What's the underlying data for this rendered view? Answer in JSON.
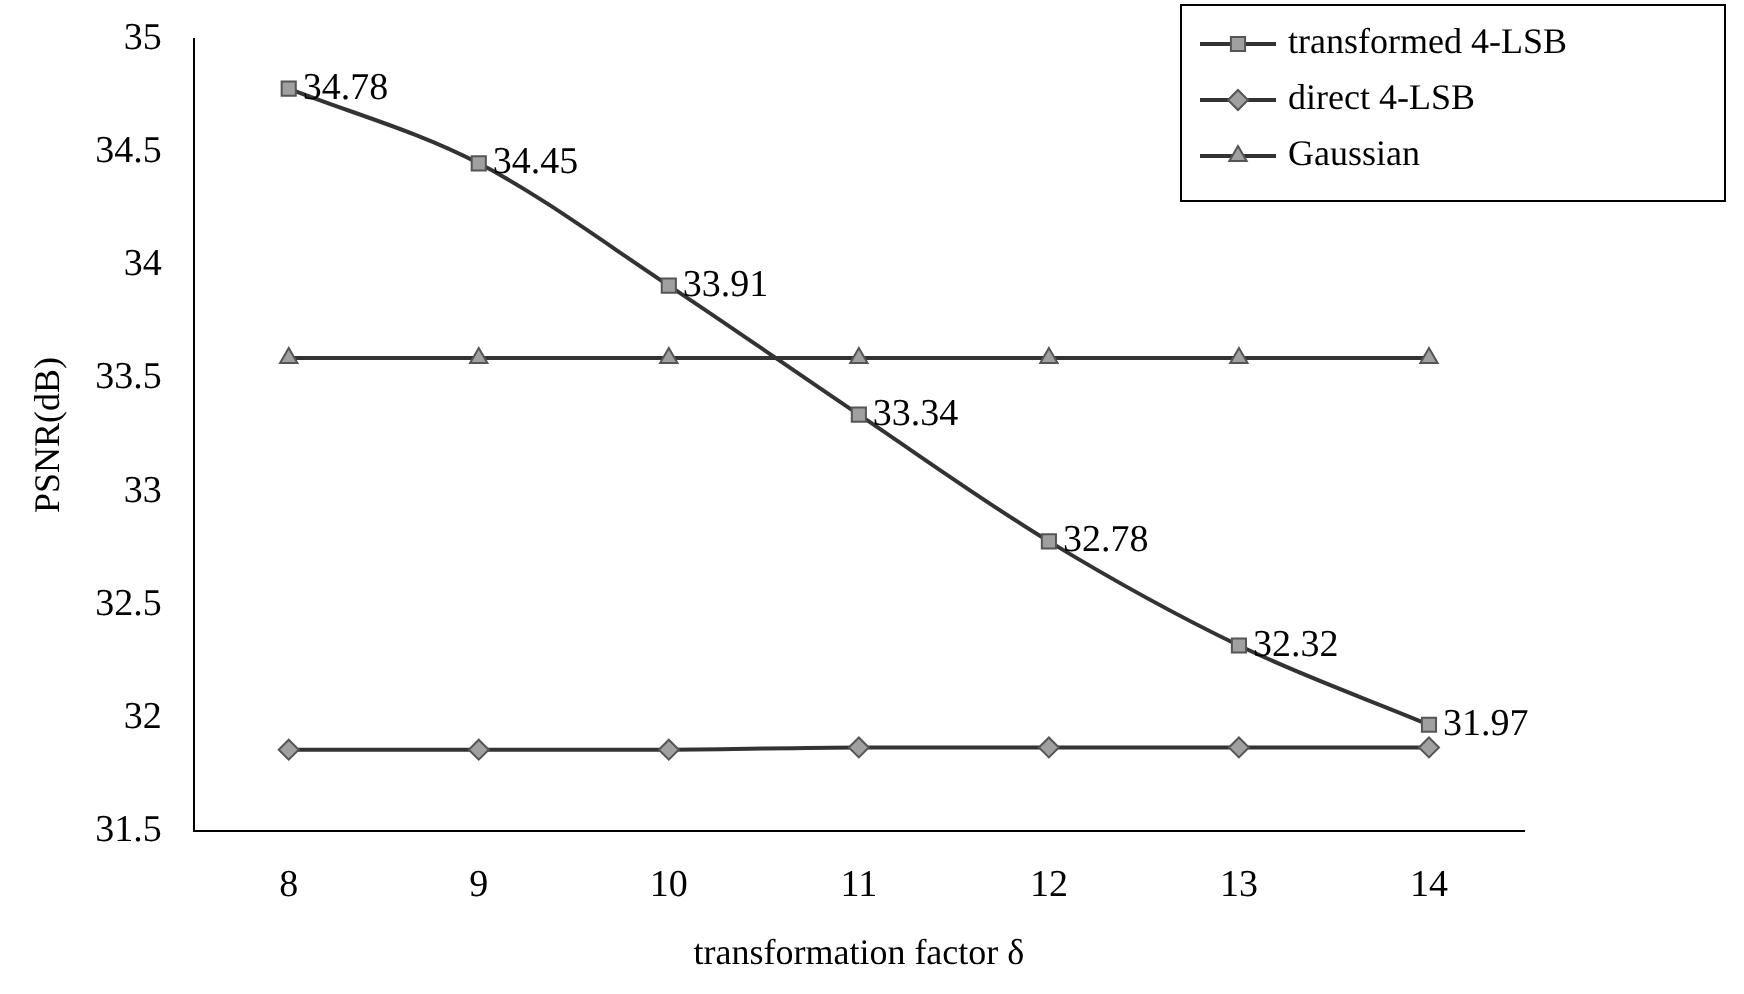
{
  "chart_data": {
    "type": "line",
    "xlabel": "transformation factor δ",
    "ylabel": "PSNR(dB)",
    "categories": [
      "8",
      "9",
      "10",
      "11",
      "12",
      "13",
      "14"
    ],
    "ylim": [
      31.5,
      35
    ],
    "yticks": [
      31.5,
      32,
      32.5,
      33,
      33.5,
      34,
      34.5,
      35
    ],
    "grid": false,
    "legend": "top right",
    "series": [
      {
        "name": "transformed 4-LSB",
        "color": "#333333",
        "marker": "square",
        "values": [
          34.78,
          34.45,
          33.91,
          33.34,
          32.78,
          32.32,
          31.97
        ],
        "value_labels": [
          "34.78",
          "34.45",
          "33.91",
          "33.34",
          "32.78",
          "32.32",
          "31.97"
        ]
      },
      {
        "name": "direct 4-LSB",
        "color": "#333333",
        "marker": "diamond",
        "values": [
          31.86,
          31.86,
          31.86,
          31.87,
          31.87,
          31.87,
          31.87
        ]
      },
      {
        "name": "Gaussian",
        "color": "#333333",
        "marker": "triangle",
        "values": [
          33.59,
          33.59,
          33.59,
          33.59,
          33.59,
          33.59,
          33.59
        ]
      }
    ]
  }
}
